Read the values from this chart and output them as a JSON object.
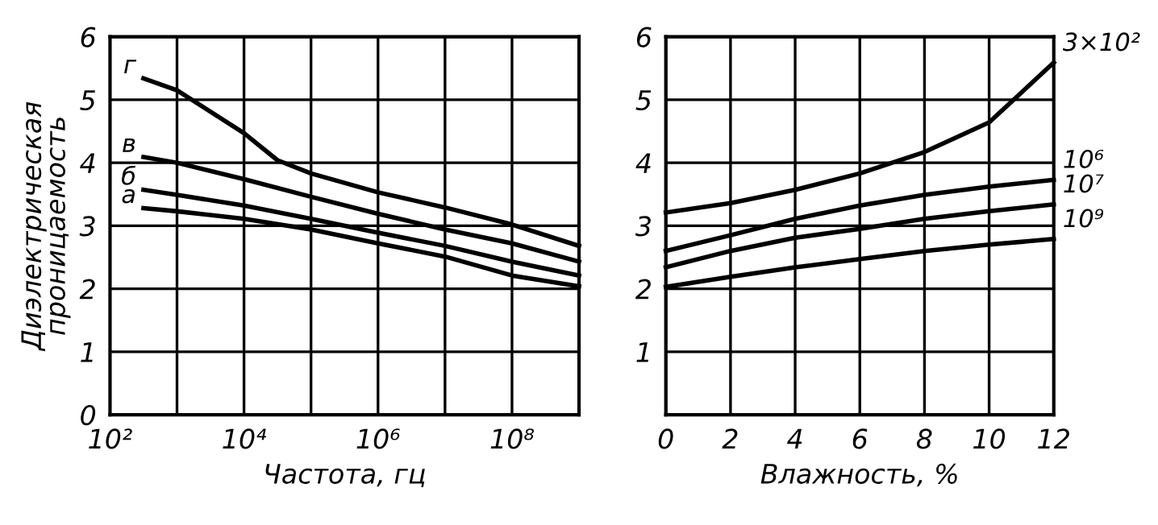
{
  "chart_data": [
    {
      "type": "line",
      "xlabel": "Частота, гц",
      "ylabel": "Диэлектрическая\nпроницаемость",
      "log": "x",
      "grid": true,
      "legend": false,
      "marker": "none",
      "line_style": "solid",
      "xlim": [
        100,
        1000000000
      ],
      "xticks": [
        {
          "value": 100,
          "label": "10²"
        },
        {
          "value": 1000,
          "label": null
        },
        {
          "value": 10000,
          "label": "10⁴"
        },
        {
          "value": 100000,
          "label": null
        },
        {
          "value": 1000000,
          "label": "10⁶"
        },
        {
          "value": 10000000,
          "label": null
        },
        {
          "value": 100000000,
          "label": "10⁸"
        }
      ],
      "ylim": [
        0,
        6
      ],
      "yticks": [
        0,
        1,
        2,
        3,
        4,
        5,
        6
      ],
      "series": [
        {
          "name": "г",
          "color": "#000000",
          "x": [
            316,
            1000,
            10000,
            31600,
            100000,
            1000000,
            10000000,
            100000000,
            1000000000
          ],
          "values": [
            5.34,
            5.15,
            4.47,
            4.04,
            3.83,
            3.53,
            3.29,
            3.02,
            2.68
          ]
        },
        {
          "name": "в",
          "color": "#000000",
          "x": [
            316,
            1000,
            10000,
            100000,
            1000000,
            10000000,
            100000000,
            1000000000
          ],
          "values": [
            4.09,
            4.0,
            3.74,
            3.46,
            3.19,
            2.94,
            2.72,
            2.43
          ]
        },
        {
          "name": "б",
          "color": "#000000",
          "x": [
            316,
            1000,
            10000,
            100000,
            1000000,
            10000000,
            100000000,
            1000000000
          ],
          "values": [
            3.57,
            3.49,
            3.32,
            3.11,
            2.89,
            2.68,
            2.43,
            2.21
          ]
        },
        {
          "name": "а",
          "color": "#000000",
          "x": [
            316,
            1000,
            10000,
            100000,
            1000000,
            10000000,
            100000000,
            1000000000
          ],
          "values": [
            3.28,
            3.23,
            3.11,
            2.94,
            2.72,
            2.51,
            2.21,
            2.04
          ]
        }
      ]
    },
    {
      "type": "line",
      "xlabel": "Влажность, %",
      "grid": true,
      "legend": false,
      "marker": "none",
      "line_style": "solid",
      "xlim": [
        0,
        12
      ],
      "xticks": [
        0,
        2,
        4,
        6,
        8,
        10,
        12
      ],
      "ylim": [
        0,
        6
      ],
      "yticks": [
        {
          "value": 0,
          "label": null
        },
        1,
        2,
        3,
        4,
        5,
        6
      ],
      "x": [
        0,
        2,
        4,
        6,
        8,
        10,
        12
      ],
      "series": [
        {
          "name": "3×10²",
          "color": "#000000",
          "values": [
            3.21,
            3.36,
            3.57,
            3.83,
            4.17,
            4.64,
            5.59
          ]
        },
        {
          "name": "10⁶",
          "color": "#000000",
          "values": [
            2.6,
            2.85,
            3.11,
            3.32,
            3.49,
            3.62,
            3.73
          ]
        },
        {
          "name": "10⁷",
          "color": "#000000",
          "values": [
            2.34,
            2.6,
            2.81,
            2.95,
            3.11,
            3.23,
            3.34
          ]
        },
        {
          "name": "10⁹",
          "color": "#000000",
          "values": [
            2.03,
            2.19,
            2.34,
            2.47,
            2.6,
            2.7,
            2.79
          ]
        }
      ]
    }
  ]
}
